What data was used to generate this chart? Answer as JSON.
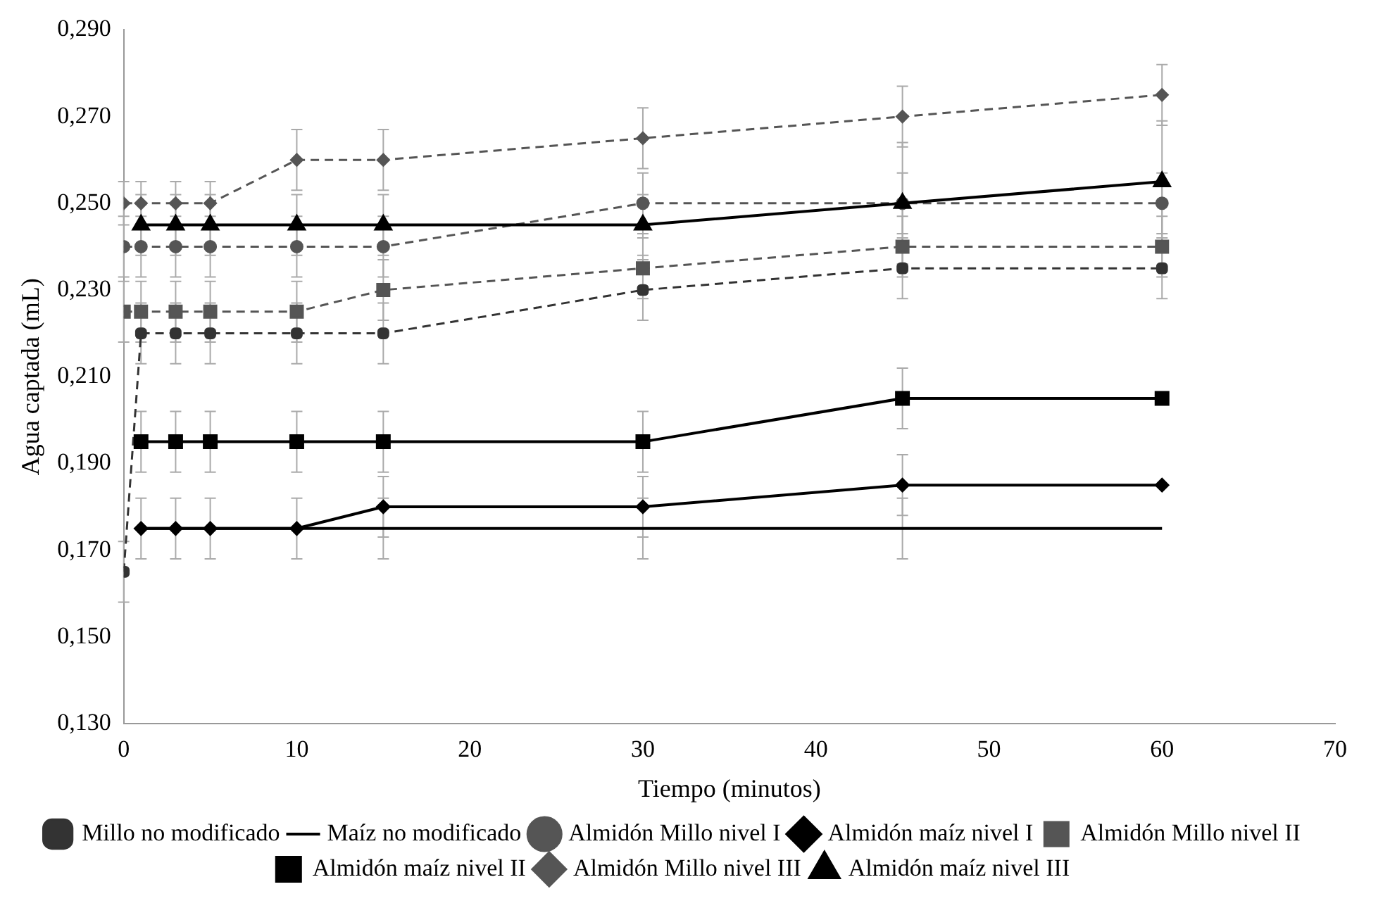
{
  "chart_data": {
    "type": "line",
    "xlabel": "Tiempo (minutos)",
    "ylabel": "Agua captada (mL)",
    "x": [
      0,
      1,
      3,
      5,
      10,
      15,
      30,
      45,
      60
    ],
    "xlim": [
      0,
      70
    ],
    "xticks": [
      0,
      10,
      20,
      30,
      40,
      50,
      60,
      70
    ],
    "ylim": [
      0.13,
      0.29
    ],
    "yticks": [
      {
        "value": 0.13,
        "label": "0,130"
      },
      {
        "value": 0.15,
        "label": "0,150"
      },
      {
        "value": 0.17,
        "label": "0,170"
      },
      {
        "value": 0.19,
        "label": "0,190"
      },
      {
        "value": 0.21,
        "label": "0,210"
      },
      {
        "value": 0.23,
        "label": "0,230"
      },
      {
        "value": 0.25,
        "label": "0,250"
      },
      {
        "value": 0.27,
        "label": "0,270"
      },
      {
        "value": 0.29,
        "label": "0,290"
      }
    ],
    "grid": false,
    "legend": "bottom",
    "series": [
      {
        "name": "Millo no modificado",
        "color": "#333333",
        "marker": "cross",
        "line_style": "dashed",
        "values": [
          0.165,
          0.22,
          0.22,
          0.22,
          0.22,
          0.22,
          0.23,
          0.235,
          0.235
        ],
        "errors": [
          0.007,
          0.007,
          0.007,
          0.007,
          0.007,
          0.007,
          0.007,
          0.007,
          0.007
        ]
      },
      {
        "name": "Maíz no modificado",
        "color": "#000000",
        "line_style": "solid",
        "values": [
          null,
          0.175,
          0.175,
          0.175,
          0.175,
          0.175,
          0.175,
          0.175,
          0.175
        ],
        "errors": [
          null,
          null,
          null,
          null,
          null,
          0.007,
          0.007,
          0.007,
          null
        ]
      },
      {
        "name": "Almidón Millo nivel I",
        "color": "#555555",
        "marker": "circle",
        "line_style": "dashed",
        "values": [
          0.24,
          0.24,
          0.24,
          0.24,
          0.24,
          0.24,
          0.25,
          0.25,
          0.25
        ],
        "errors": [
          0.007,
          0.007,
          0.007,
          0.007,
          0.007,
          0.007,
          0.007,
          0.007,
          0.007
        ]
      },
      {
        "name": "Almidón maíz nivel I",
        "color": "#000000",
        "marker": "diamond",
        "line_style": "solid",
        "values": [
          null,
          0.175,
          0.175,
          0.175,
          0.175,
          0.18,
          0.18,
          0.185,
          0.185
        ],
        "errors": [
          null,
          0.007,
          0.007,
          0.007,
          0.007,
          0.007,
          0.007,
          0.007,
          null
        ]
      },
      {
        "name": "Almidón Millo nivel II",
        "color": "#555555",
        "marker": "square",
        "line_style": "dashed",
        "values": [
          0.225,
          0.225,
          0.225,
          0.225,
          0.225,
          0.23,
          0.235,
          0.24,
          0.24
        ],
        "errors": [
          0.007,
          0.007,
          0.007,
          0.007,
          0.007,
          0.007,
          0.007,
          0.007,
          0.007
        ]
      },
      {
        "name": "Almidón maíz nivel II",
        "color": "#000000",
        "marker": "square",
        "line_style": "solid",
        "values": [
          null,
          0.195,
          0.195,
          0.195,
          0.195,
          0.195,
          0.195,
          0.205,
          0.205
        ],
        "errors": [
          null,
          0.007,
          0.007,
          0.007,
          0.007,
          0.007,
          0.007,
          0.007,
          null
        ]
      },
      {
        "name": "Almidón Millo nivel III",
        "color": "#555555",
        "marker": "diamond",
        "line_style": "dashed",
        "values": [
          0.25,
          0.25,
          0.25,
          0.25,
          0.26,
          0.26,
          0.265,
          0.27,
          0.275
        ],
        "errors": [
          0.005,
          0.005,
          0.005,
          0.005,
          0.007,
          0.007,
          0.007,
          0.007,
          0.007
        ]
      },
      {
        "name": "Almidón maíz nivel III",
        "color": "#000000",
        "marker": "triangle",
        "line_style": "solid",
        "values": [
          null,
          0.245,
          0.245,
          0.245,
          0.245,
          0.245,
          0.245,
          0.25,
          0.255
        ],
        "errors": [
          null,
          0.007,
          0.007,
          0.007,
          0.007,
          0.007,
          0.007,
          0.014,
          0.014
        ]
      }
    ]
  }
}
